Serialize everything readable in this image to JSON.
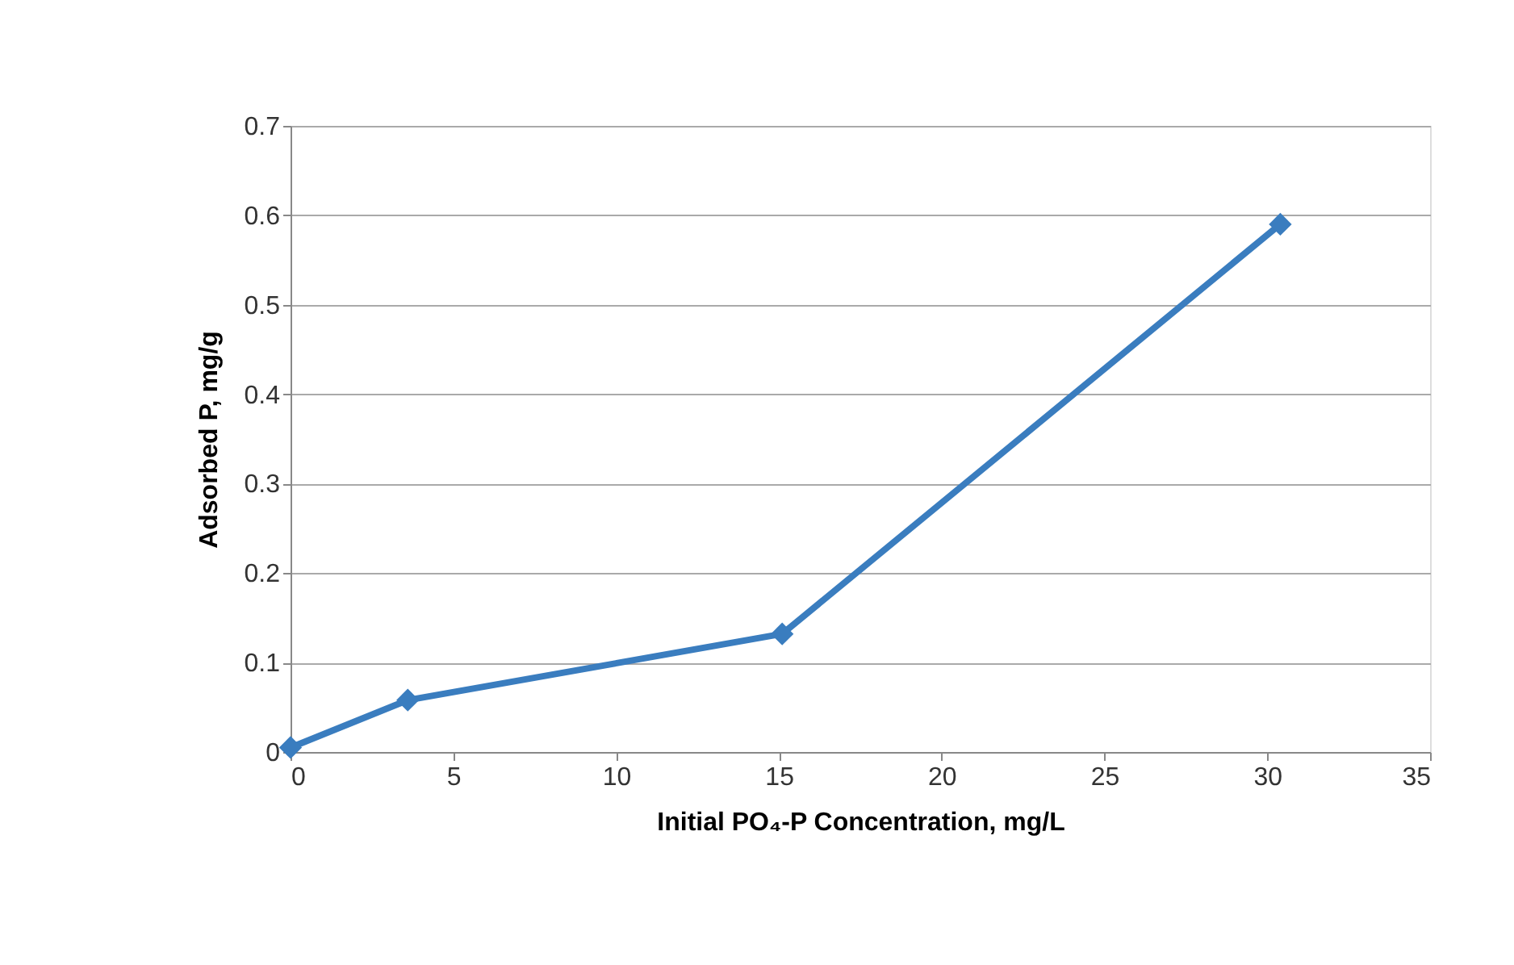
{
  "chart_data": {
    "type": "line",
    "xlabel": "Initial PO₄-P Concentration, mg/L",
    "ylabel": "Adsorbed P, mg/g",
    "x": [
      0,
      3.6,
      15.1,
      30.4
    ],
    "series": [
      {
        "color": "#3a7dbf",
        "values": [
          0.005,
          0.058,
          0.132,
          0.59
        ]
      }
    ],
    "xlim": [
      0,
      35
    ],
    "xticks": [
      0,
      5,
      10,
      15,
      20,
      25,
      30,
      35
    ],
    "ylim": [
      0,
      0.7
    ],
    "yticks": [
      0,
      0.1,
      0.2,
      0.3,
      0.4,
      0.5,
      0.6,
      0.7
    ],
    "grid": "y",
    "marker": "diamond",
    "line_style": "solid"
  }
}
